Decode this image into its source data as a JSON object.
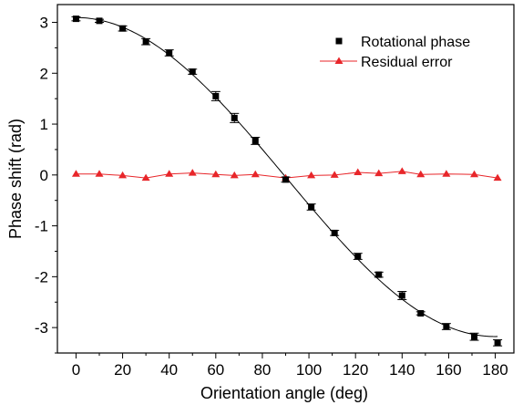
{
  "chart_data": {
    "type": "scatter",
    "xlabel": "Orientation angle (deg)",
    "ylabel": "Phase shift (rad)",
    "xlim": [
      -8,
      188
    ],
    "ylim": [
      -3.5,
      3.35
    ],
    "x_ticks": [
      0,
      20,
      40,
      60,
      80,
      100,
      120,
      140,
      160,
      180
    ],
    "x_tick_labels": [
      "0",
      "20",
      "40",
      "60",
      "80",
      "100",
      "120",
      "140",
      "160",
      "180"
    ],
    "y_ticks": [
      -3,
      -2,
      -1,
      0,
      1,
      2,
      3
    ],
    "y_tick_labels": [
      "-3",
      "-2",
      "-1",
      "0",
      "1",
      "2",
      "3"
    ],
    "grid": false,
    "legend_position": "top-right",
    "series": [
      {
        "name": "Rotational phase",
        "marker": "square",
        "color": "#000000",
        "fit_line": true,
        "x": [
          0,
          10,
          20,
          30,
          40,
          50,
          60,
          68,
          77,
          90,
          101,
          111,
          121,
          130,
          140,
          148,
          159,
          171,
          181
        ],
        "y": [
          3.07,
          3.03,
          2.88,
          2.62,
          2.4,
          2.03,
          1.55,
          1.12,
          0.67,
          -0.09,
          -0.63,
          -1.14,
          -1.6,
          -1.96,
          -2.37,
          -2.72,
          -2.98,
          -3.18,
          -3.3
        ],
        "y_err": [
          0.04,
          0.03,
          0.05,
          0.06,
          0.06,
          0.05,
          0.09,
          0.09,
          0.07,
          0.05,
          0.06,
          0.05,
          0.06,
          0.05,
          0.08,
          0.03,
          0.06,
          0.07,
          0.06
        ]
      },
      {
        "name": "Residual error",
        "marker": "triangle",
        "color": "#e8262a",
        "connect": true,
        "x": [
          0,
          10,
          20,
          30,
          40,
          50,
          60,
          68,
          77,
          90,
          101,
          111,
          121,
          130,
          140,
          148,
          159,
          171,
          181
        ],
        "y": [
          0.02,
          0.02,
          -0.01,
          -0.06,
          0.02,
          0.04,
          0.01,
          -0.01,
          0.01,
          -0.06,
          -0.01,
          0.0,
          0.05,
          0.03,
          0.07,
          0.01,
          0.02,
          0.01,
          -0.06
        ]
      }
    ]
  }
}
